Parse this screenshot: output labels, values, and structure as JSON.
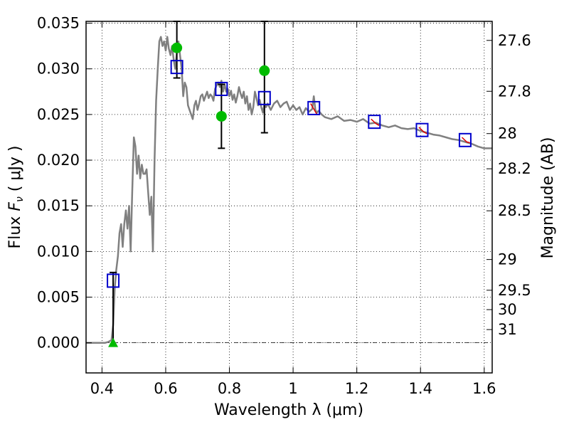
{
  "chart_data": {
    "type": "scatter",
    "xlabel": "Wavelength  λ (μm)",
    "ylabel": "Flux  F_ν  ( μJy )",
    "ylabel_parts": {
      "prefix": "Flux  ",
      "var": "F",
      "sub": "ν",
      "suffix": "  ( μJy )"
    },
    "y2label": "Magnitude (AB)",
    "xlim": [
      0.35,
      1.625
    ],
    "ylim": [
      -0.0033,
      0.0352
    ],
    "grid": true,
    "x_ticks": [
      "0.4",
      "0.6",
      "0.8",
      "1",
      "1.2",
      "1.4",
      "1.6"
    ],
    "y_ticks": [
      "0.000",
      "0.005",
      "0.010",
      "0.015",
      "0.020",
      "0.025",
      "0.030",
      "0.035"
    ],
    "y2_ticks": [
      "27.6",
      "27.8",
      "28",
      "28.2",
      "28.5",
      "29",
      "29.5",
      "30",
      "31"
    ],
    "colors": {
      "model": "#808080",
      "model_points": "#0000cc",
      "photometry": "#00bb00",
      "observed": "#dd0000",
      "errorbar": "#000000"
    },
    "model_spectrum": {
      "x": [
        0.35,
        0.41,
        0.42,
        0.43,
        0.435,
        0.44,
        0.445,
        0.45,
        0.455,
        0.46,
        0.465,
        0.47,
        0.475,
        0.48,
        0.485,
        0.49,
        0.495,
        0.5,
        0.505,
        0.51,
        0.515,
        0.52,
        0.525,
        0.53,
        0.535,
        0.54,
        0.545,
        0.55,
        0.555,
        0.56,
        0.565,
        0.57,
        0.575,
        0.58,
        0.585,
        0.59,
        0.595,
        0.6,
        0.605,
        0.61,
        0.615,
        0.62,
        0.625,
        0.63,
        0.635,
        0.64,
        0.645,
        0.65,
        0.655,
        0.66,
        0.665,
        0.67,
        0.675,
        0.68,
        0.685,
        0.69,
        0.695,
        0.7,
        0.705,
        0.71,
        0.715,
        0.72,
        0.725,
        0.73,
        0.735,
        0.74,
        0.745,
        0.75,
        0.755,
        0.76,
        0.765,
        0.77,
        0.775,
        0.78,
        0.785,
        0.79,
        0.795,
        0.8,
        0.805,
        0.81,
        0.815,
        0.82,
        0.825,
        0.83,
        0.835,
        0.84,
        0.845,
        0.85,
        0.855,
        0.86,
        0.865,
        0.87,
        0.875,
        0.88,
        0.885,
        0.89,
        0.895,
        0.9,
        0.905,
        0.91,
        0.915,
        0.92,
        0.93,
        0.94,
        0.95,
        0.96,
        0.97,
        0.98,
        0.99,
        1.0,
        1.01,
        1.02,
        1.03,
        1.04,
        1.05,
        1.06,
        1.065,
        1.07,
        1.075,
        1.08,
        1.09,
        1.1,
        1.12,
        1.14,
        1.16,
        1.18,
        1.2,
        1.22,
        1.24,
        1.26,
        1.28,
        1.3,
        1.32,
        1.34,
        1.36,
        1.38,
        1.4,
        1.42,
        1.44,
        1.46,
        1.48,
        1.5,
        1.52,
        1.54,
        1.56,
        1.58,
        1.6,
        1.625
      ],
      "y": [
        0.0,
        0.0,
        0.0001,
        0.0003,
        0.002,
        0.006,
        0.008,
        0.0095,
        0.012,
        0.013,
        0.0105,
        0.013,
        0.0145,
        0.0125,
        0.015,
        0.01,
        0.0165,
        0.0225,
        0.0215,
        0.0185,
        0.0205,
        0.018,
        0.0195,
        0.0185,
        0.0185,
        0.019,
        0.0165,
        0.014,
        0.016,
        0.01,
        0.02,
        0.0265,
        0.03,
        0.033,
        0.0335,
        0.0325,
        0.033,
        0.032,
        0.0335,
        0.0322,
        0.0315,
        0.0325,
        0.031,
        0.03,
        0.0318,
        0.033,
        0.0315,
        0.03,
        0.027,
        0.0285,
        0.028,
        0.026,
        0.0255,
        0.025,
        0.0245,
        0.026,
        0.0265,
        0.0255,
        0.0262,
        0.027,
        0.0272,
        0.0265,
        0.027,
        0.0275,
        0.0268,
        0.0272,
        0.027,
        0.0265,
        0.0278,
        0.0282,
        0.0285,
        0.028,
        0.0287,
        0.0275,
        0.0283,
        0.0275,
        0.0278,
        0.027,
        0.0276,
        0.0266,
        0.0272,
        0.0263,
        0.027,
        0.028,
        0.0273,
        0.0268,
        0.0275,
        0.0262,
        0.027,
        0.0255,
        0.0262,
        0.025,
        0.0258,
        0.0275,
        0.0268,
        0.026,
        0.0266,
        0.0258,
        0.0252,
        0.0262,
        0.0258,
        0.0262,
        0.0255,
        0.0262,
        0.0265,
        0.0258,
        0.0262,
        0.0264,
        0.0255,
        0.026,
        0.0255,
        0.0258,
        0.025,
        0.0257,
        0.0253,
        0.0256,
        0.027,
        0.0255,
        0.0252,
        0.0254,
        0.025,
        0.0247,
        0.0245,
        0.0248,
        0.0243,
        0.0244,
        0.0242,
        0.0245,
        0.024,
        0.0241,
        0.0238,
        0.0236,
        0.0238,
        0.0235,
        0.0234,
        0.0235,
        0.0232,
        0.023,
        0.0228,
        0.0227,
        0.0225,
        0.0223,
        0.0222,
        0.022,
        0.0218,
        0.0215,
        0.0213,
        0.0213
      ]
    },
    "model_points": {
      "x": [
        0.435,
        0.635,
        0.775,
        0.91,
        1.065,
        1.255,
        1.405,
        1.54
      ],
      "y": [
        0.0068,
        0.0302,
        0.0278,
        0.0268,
        0.0257,
        0.0242,
        0.0233,
        0.0222
      ]
    },
    "photometry": {
      "x": [
        0.635,
        0.775,
        0.91
      ],
      "y": [
        0.0323,
        0.0248,
        0.0298
      ],
      "y_err_low": [
        0.029,
        0.0213,
        0.023
      ],
      "y_err_high": [
        0.0352,
        0.0283,
        0.0352
      ]
    },
    "upper_limit": {
      "x": 0.435,
      "y": 0.0,
      "y_err_high": 0.0077
    },
    "observed_spectra": [
      {
        "x": [
          1.055,
          1.065,
          1.075
        ],
        "y": [
          0.0262,
          0.0256,
          0.025
        ]
      },
      {
        "x": [
          1.245,
          1.26,
          1.27
        ],
        "y": [
          0.0245,
          0.024,
          0.0238
        ]
      },
      {
        "x": [
          1.395,
          1.41,
          1.42
        ],
        "y": [
          0.0236,
          0.0231,
          0.0229
        ]
      },
      {
        "x": [
          1.53,
          1.545,
          1.555
        ],
        "y": [
          0.0225,
          0.022,
          0.0219
        ]
      }
    ]
  }
}
